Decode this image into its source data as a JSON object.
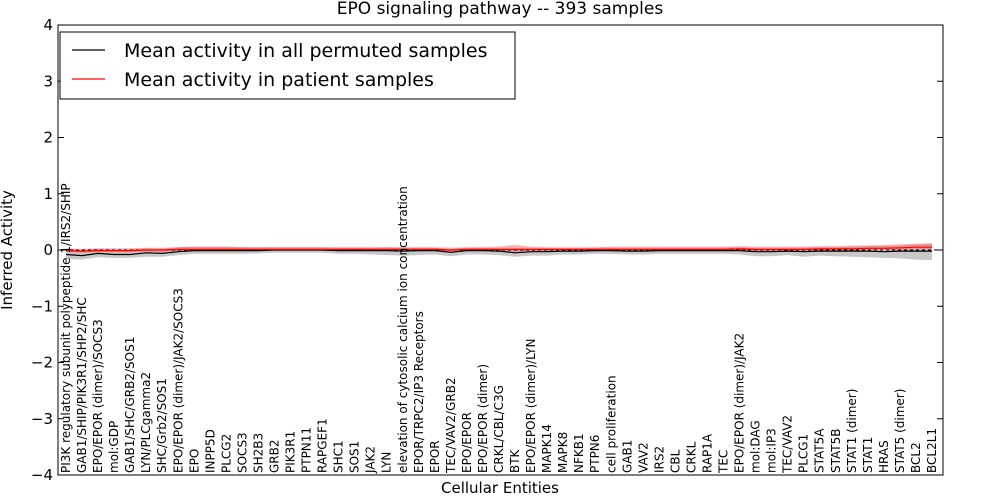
{
  "chart_data": {
    "type": "line",
    "title": "EPO signaling pathway -- 393 samples",
    "xlabel": "Cellular Entities",
    "ylabel": "Inferred Activity",
    "ylim": [
      -4,
      4
    ],
    "yticks": [
      -4,
      -3,
      -2,
      -1,
      0,
      1,
      2,
      3,
      4
    ],
    "ytick_labels": [
      "−4",
      "−3",
      "−2",
      "−1",
      "0",
      "1",
      "2",
      "3",
      "4"
    ],
    "grid": false,
    "legend_position": "top-left",
    "categories": [
      "PI3K regulatory subunit polypeptide 1/IRS2/SHIP",
      "GAB1/SHIP/PIK3R1/SHP2/SHC",
      "EPO/EPOR (dimer)/SOCS3",
      "mol:GDP",
      "GAB1/SHC/GRB2/SOS1",
      "LYN/PLCgamma2",
      "SHC/Grb2/SOS1",
      "EPO/EPOR (dimer)/JAK2/SOCS3",
      "EPO",
      "INPP5D",
      "PLCG2",
      "SOCS3",
      "SH2B3",
      "GRB2",
      "PIK3R1",
      "PTPN11",
      "RAPGEF1",
      "SHC1",
      "SOS1",
      "JAK2",
      "LYN",
      "elevation of cytosolic calcium ion concentration",
      "EPOR/TRPC2/IP3 Receptors",
      "EPOR",
      "TEC/VAV2/GRB2",
      "EPO/EPOR",
      "EPO/EPOR (dimer)",
      "CRKL/CBL/C3G",
      "BTK",
      "EPO/EPOR (dimer)/LYN",
      "MAPK14",
      "MAPK8",
      "NFKB1",
      "PTPN6",
      "cell proliferation",
      "GAB1",
      "VAV2",
      "IRS2",
      "CBL",
      "CRKL",
      "RAP1A",
      "TEC",
      "EPO/EPOR (dimer)/JAK2",
      "mol:DAG",
      "mol:IP3",
      "TEC/VAV2",
      "PLCG1",
      "STAT5A",
      "STAT5B",
      "STAT1 (dimer)",
      "STAT1",
      "HRAS",
      "STAT5 (dimer)",
      "BCL2",
      "BCL2L1"
    ],
    "series": [
      {
        "name": "Mean activity in all permuted samples",
        "color": "#000000",
        "values": [
          -0.08,
          -0.1,
          -0.06,
          -0.08,
          -0.08,
          -0.05,
          -0.06,
          -0.03,
          -0.01,
          -0.01,
          -0.01,
          -0.01,
          -0.01,
          0.0,
          0.0,
          0.0,
          0.0,
          -0.01,
          -0.01,
          -0.01,
          -0.01,
          -0.02,
          -0.01,
          -0.01,
          -0.04,
          -0.01,
          -0.01,
          -0.02,
          -0.05,
          -0.03,
          -0.03,
          -0.02,
          -0.02,
          -0.01,
          -0.01,
          -0.02,
          -0.02,
          -0.01,
          -0.01,
          -0.01,
          -0.01,
          -0.01,
          -0.01,
          -0.03,
          -0.03,
          -0.02,
          -0.03,
          -0.02,
          -0.02,
          -0.02,
          -0.02,
          -0.03,
          -0.02,
          -0.02,
          -0.02
        ],
        "lower": [
          -0.16,
          -0.17,
          -0.13,
          -0.14,
          -0.14,
          -0.12,
          -0.12,
          -0.09,
          -0.07,
          -0.07,
          -0.07,
          -0.07,
          -0.06,
          -0.05,
          -0.05,
          -0.05,
          -0.05,
          -0.07,
          -0.07,
          -0.08,
          -0.09,
          -0.1,
          -0.09,
          -0.08,
          -0.11,
          -0.08,
          -0.08,
          -0.09,
          -0.12,
          -0.1,
          -0.1,
          -0.08,
          -0.08,
          -0.07,
          -0.07,
          -0.08,
          -0.08,
          -0.07,
          -0.07,
          -0.07,
          -0.07,
          -0.07,
          -0.08,
          -0.11,
          -0.11,
          -0.09,
          -0.12,
          -0.1,
          -0.11,
          -0.12,
          -0.13,
          -0.14,
          -0.15,
          -0.17,
          -0.18
        ],
        "upper": [
          0.02,
          0.0,
          0.02,
          0.0,
          0.0,
          0.03,
          0.02,
          0.05,
          0.06,
          0.06,
          0.06,
          0.05,
          0.05,
          0.05,
          0.05,
          0.05,
          0.05,
          0.04,
          0.04,
          0.04,
          0.05,
          0.04,
          0.04,
          0.04,
          0.02,
          0.04,
          0.04,
          0.03,
          0.02,
          0.03,
          0.03,
          0.03,
          0.03,
          0.04,
          0.04,
          0.03,
          0.03,
          0.04,
          0.04,
          0.04,
          0.04,
          0.04,
          0.05,
          0.03,
          0.03,
          0.04,
          0.04,
          0.05,
          0.05,
          0.06,
          0.07,
          0.07,
          0.08,
          0.1,
          0.11
        ]
      },
      {
        "name": "Mean activity in patient samples",
        "color": "#ff0000",
        "values": [
          -0.01,
          -0.02,
          -0.01,
          -0.01,
          -0.01,
          0.0,
          0.0,
          0.01,
          0.01,
          0.01,
          0.01,
          0.01,
          0.01,
          0.01,
          0.01,
          0.01,
          0.01,
          0.01,
          0.01,
          0.01,
          0.01,
          0.01,
          0.01,
          0.01,
          0.0,
          0.01,
          0.01,
          0.01,
          0.01,
          0.01,
          0.01,
          0.01,
          0.01,
          0.01,
          0.01,
          0.01,
          0.01,
          0.01,
          0.01,
          0.01,
          0.01,
          0.01,
          0.02,
          0.01,
          0.01,
          0.01,
          0.01,
          0.02,
          0.02,
          0.02,
          0.03,
          0.03,
          0.04,
          0.05,
          0.05
        ],
        "lower": [
          -0.04,
          -0.05,
          -0.04,
          -0.04,
          -0.04,
          -0.03,
          -0.03,
          -0.02,
          -0.02,
          -0.02,
          -0.02,
          -0.02,
          -0.01,
          -0.01,
          -0.01,
          -0.01,
          -0.01,
          -0.02,
          -0.02,
          -0.02,
          -0.02,
          -0.02,
          -0.02,
          -0.02,
          -0.03,
          -0.02,
          -0.02,
          -0.02,
          -0.03,
          -0.02,
          -0.02,
          -0.02,
          -0.02,
          -0.01,
          -0.01,
          -0.02,
          -0.02,
          -0.01,
          -0.01,
          -0.01,
          -0.01,
          -0.01,
          -0.01,
          -0.02,
          -0.02,
          -0.02,
          -0.02,
          -0.01,
          -0.01,
          -0.01,
          0.0,
          0.0,
          0.0,
          0.01,
          0.01
        ],
        "upper": [
          0.03,
          0.02,
          0.03,
          0.03,
          0.03,
          0.04,
          0.04,
          0.05,
          0.06,
          0.06,
          0.06,
          0.05,
          0.05,
          0.05,
          0.05,
          0.05,
          0.05,
          0.05,
          0.05,
          0.05,
          0.05,
          0.05,
          0.05,
          0.05,
          0.04,
          0.05,
          0.05,
          0.06,
          0.09,
          0.06,
          0.05,
          0.05,
          0.05,
          0.05,
          0.06,
          0.06,
          0.06,
          0.06,
          0.06,
          0.06,
          0.06,
          0.06,
          0.07,
          0.06,
          0.06,
          0.06,
          0.06,
          0.07,
          0.07,
          0.08,
          0.08,
          0.09,
          0.1,
          0.11,
          0.12
        ]
      }
    ]
  }
}
